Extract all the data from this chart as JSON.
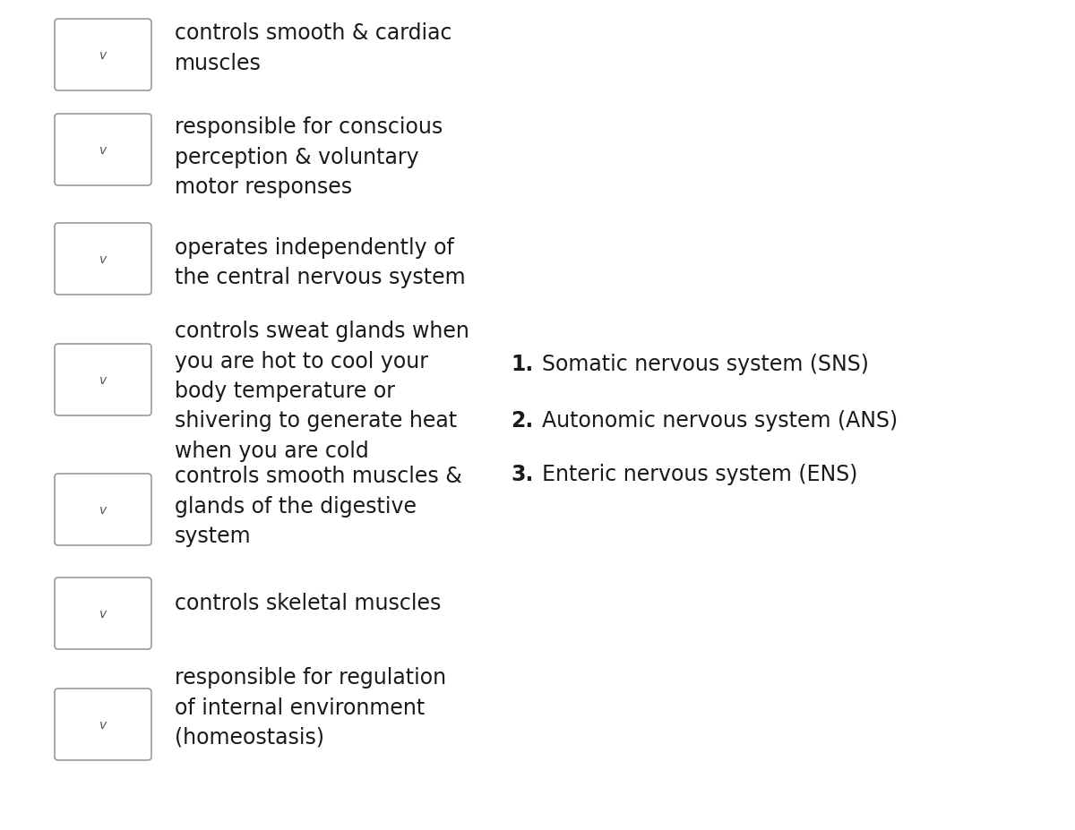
{
  "background_color": "#ffffff",
  "rows": [
    {
      "text": "controls smooth & cardiac\nmuscles",
      "lines": 2
    },
    {
      "text": "responsible for conscious\nperception & voluntary\nmotor responses",
      "lines": 3
    },
    {
      "text": "operates independently of\nthe central nervous system",
      "lines": 2
    },
    {
      "text": "controls sweat glands when\nyou are hot to cool your\nbody temperature or\nshivering to generate heat\nwhen you are cold",
      "lines": 5
    },
    {
      "text": "controls smooth muscles &\nglands of the digestive\nsystem",
      "lines": 3
    },
    {
      "text": "controls skeletal muscles",
      "lines": 1
    },
    {
      "text": "responsible for regulation\nof internal environment\n(homeostasis)",
      "lines": 3
    }
  ],
  "legend_items": [
    "Somatic nervous system (SNS)",
    "Autonomic nervous system (ANS)",
    "Enteric nervous system (ENS)"
  ],
  "box_edge_color": "#999999",
  "box_face_color": "#ffffff",
  "text_color": "#1a1a1a",
  "chevron_color": "#555555",
  "font_size": 17,
  "legend_font_size": 17,
  "chevron_size": 10,
  "fig_width": 12.0,
  "fig_height": 9.28,
  "dpi": 100
}
